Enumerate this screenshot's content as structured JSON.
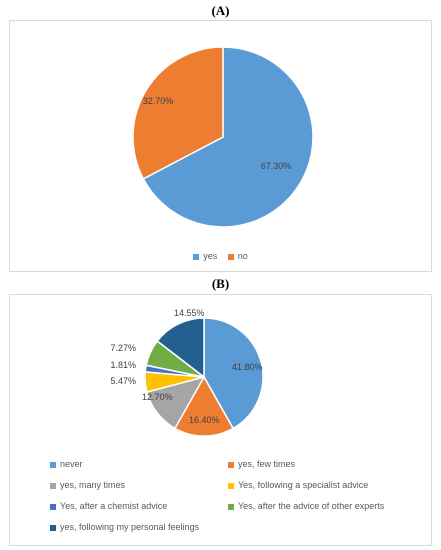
{
  "panels": {
    "a_label": "(A)",
    "b_label": "(B)"
  },
  "chart_data": [
    {
      "type": "pie",
      "title": "",
      "categories": [
        "yes",
        "no"
      ],
      "values": [
        67.3,
        32.7
      ],
      "value_labels": [
        "67.30%",
        "32.70%"
      ],
      "colors": [
        "#5B9BD5",
        "#ED7D31"
      ],
      "legend": "bottom",
      "legend_entries": [
        "yes",
        "no"
      ]
    },
    {
      "type": "pie",
      "title": "",
      "categories": [
        "never",
        "yes, few times",
        "yes, many times",
        "Yes, following a specialist advice",
        "Yes, after a chemist advice",
        "Yes, after the advice of other experts",
        "yes, following my personal feelings"
      ],
      "values": [
        41.8,
        16.4,
        12.7,
        5.47,
        1.81,
        7.27,
        14.55
      ],
      "value_labels": [
        "41.80%",
        "16.40%",
        "12.70%",
        "5.47%",
        "1.81%",
        "7.27%",
        "14.55%"
      ],
      "colors": [
        "#5B9BD5",
        "#ED7D31",
        "#A5A5A5",
        "#FFC000",
        "#4472C4",
        "#70AD47",
        "#255E91"
      ],
      "legend": "bottom",
      "legend_entries": [
        "never",
        "yes, few times",
        "yes, many times",
        "Yes, following a specialist advice",
        "Yes, after a chemist advice",
        "Yes, after the advice of other experts",
        "yes, following my personal feelings"
      ]
    }
  ]
}
